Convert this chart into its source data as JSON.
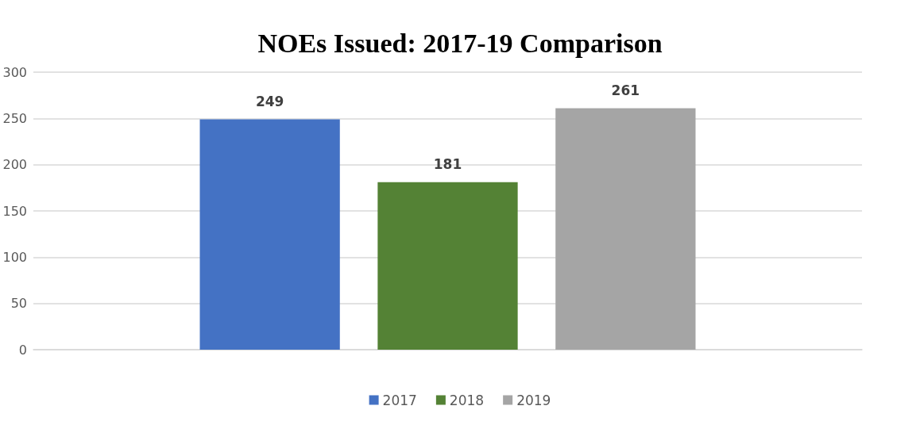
{
  "chart_data": {
    "type": "bar",
    "title": "NOEs Issued: 2017-19 Comparison",
    "categories": [
      null
    ],
    "series": [
      {
        "name": "2017",
        "color": "#4472c4",
        "values": [
          249
        ]
      },
      {
        "name": "2018",
        "color": "#548235",
        "values": [
          181
        ]
      },
      {
        "name": "2019",
        "color": "#a5a5a5",
        "values": [
          261
        ]
      }
    ],
    "ylim": [
      0,
      300
    ],
    "yticks": [
      0,
      50,
      100,
      150,
      200,
      250,
      300
    ],
    "grid": "y",
    "legend": "bottom",
    "data_labels": true
  }
}
